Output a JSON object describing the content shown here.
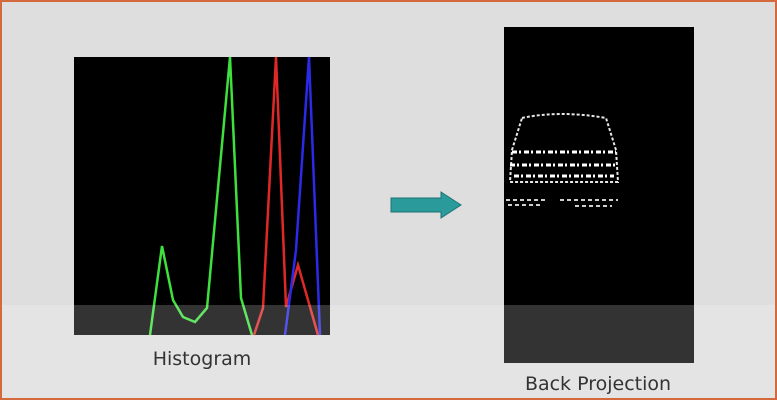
{
  "labels": {
    "histogram": "Histogram",
    "back_projection": "Back Projection"
  }
}
